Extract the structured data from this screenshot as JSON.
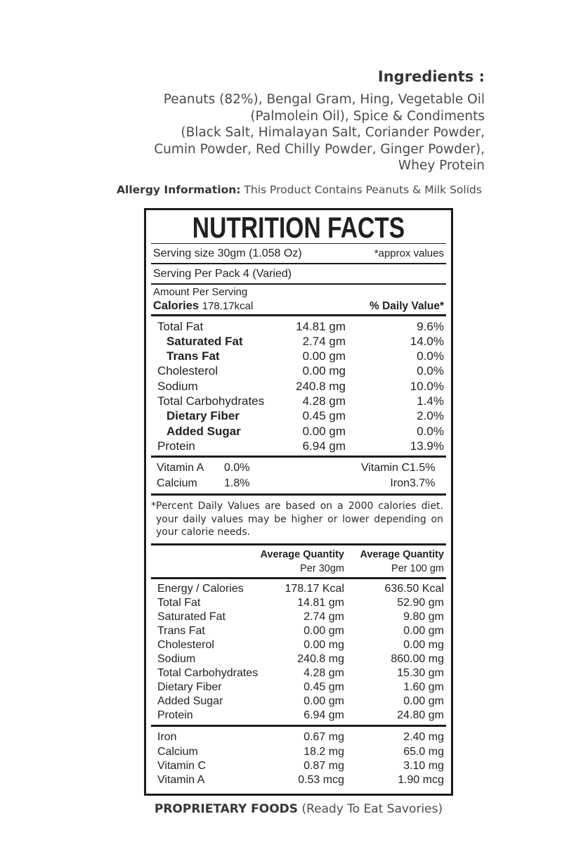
{
  "colors": {
    "ink": "#231f20",
    "muted_text": "#4b4b4d",
    "border": "#1c1c1c"
  },
  "top": {
    "ingredients_heading": "Ingredients :",
    "ingredients_lines": [
      "Peanuts (82%), Bengal Gram, Hing, Vegetable Oil",
      "(Palmolein Oil), Spice & Condiments",
      "(Black Salt, Himalayan Salt, Coriander Powder,",
      "Cumin Powder, Red Chilly Powder, Ginger Powder),",
      "Whey Protein"
    ],
    "allergy_label": "Allergy Information:",
    "allergy_text": " This Product Contains Peanuts & Milk Solids"
  },
  "label": {
    "title": "NUTRITION FACTS",
    "serving_size": "Serving size 30gm (1.058 Oz)",
    "approx_note": "*approx values",
    "serving_per_pack": "Serving Per Pack 4 (Varied)",
    "amount_per_serving": "Amount Per Serving",
    "calories_label": "Calories",
    "calories_value": "178.17kcal",
    "daily_value_header": "% Daily Value*",
    "main_rows": [
      {
        "label": "Total Fat",
        "amount": "14.81 gm",
        "dv": "9.6%",
        "sub": false
      },
      {
        "label": "Saturated Fat",
        "amount": "2.74 gm",
        "dv": "14.0%",
        "sub": true
      },
      {
        "label": "Trans Fat",
        "amount": "0.00 gm",
        "dv": "0.0%",
        "sub": true
      },
      {
        "label": "Cholesterol",
        "amount": "0.00 mg",
        "dv": "0.0%",
        "sub": false
      },
      {
        "label": "Sodium",
        "amount": "240.8 mg",
        "dv": "10.0%",
        "sub": false
      },
      {
        "label": "Total Carbohydrates",
        "amount": "4.28 gm",
        "dv": "1.4%",
        "sub": false
      },
      {
        "label": "Dietary Fiber",
        "amount": "0.45 gm",
        "dv": "2.0%",
        "sub": true
      },
      {
        "label": "Added Sugar",
        "amount": "0.00 gm",
        "dv": "0.0%",
        "sub": true
      },
      {
        "label": "Protein",
        "amount": "6.94 gm",
        "dv": "13.9%",
        "sub": false
      }
    ],
    "micros": [
      {
        "label": "Vitamin A",
        "value": "0.0%"
      },
      {
        "label": "Vitamin C",
        "value": "1.5%"
      },
      {
        "label": "Calcium",
        "value": "1.8%"
      },
      {
        "label": "Iron",
        "value": "3.7%"
      }
    ],
    "footnote": "*Percent Daily Values are based on a 2000 calories diet. your daily values may be higher or lower depending on your calorie needs.",
    "avg_table": {
      "headers": [
        {
          "title": "Average Quantity",
          "sub": "Per 30gm"
        },
        {
          "title": "Average Quantity",
          "sub": "Per 100 gm"
        }
      ],
      "rows": [
        {
          "label": "Energy / Calories",
          "per30": "178.17 Kcal",
          "per100": "636.50 Kcal"
        },
        {
          "label": "Total Fat",
          "per30": "14.81 gm",
          "per100": "52.90 gm"
        },
        {
          "label": "Saturated Fat",
          "per30": "2.74 gm",
          "per100": "9.80 gm"
        },
        {
          "label": "Trans Fat",
          "per30": "0.00 gm",
          "per100": "0.00 gm"
        },
        {
          "label": "Cholesterol",
          "per30": "0.00 mg",
          "per100": "0.00 mg"
        },
        {
          "label": "Sodium",
          "per30": "240.8 mg",
          "per100": "860.00 mg"
        },
        {
          "label": "Total Carbohydrates",
          "per30": "4.28 gm",
          "per100": "15.30 gm"
        },
        {
          "label": "Dietary Fiber",
          "per30": "0.45 gm",
          "per100": "1.60 gm"
        },
        {
          "label": "Added Sugar",
          "per30": "0.00 gm",
          "per100": "0.00 gm"
        },
        {
          "label": "Protein",
          "per30": "6.94 gm",
          "per100": "24.80 gm"
        }
      ],
      "mineral_rows": [
        {
          "label": "Iron",
          "per30": "0.67 mg",
          "per100": "2.40 mg"
        },
        {
          "label": "Calcium",
          "per30": "18.2 mg",
          "per100": "65.0 mg"
        },
        {
          "label": "Vitamin C",
          "per30": "0.87 mg",
          "per100": "3.10 mg"
        },
        {
          "label": "Vitamin A",
          "per30": "0.53 mcg",
          "per100": "1.90 mcg"
        }
      ]
    }
  },
  "footer": {
    "bold": "PROPRIETARY FOODS",
    "text": " (Ready To Eat Savories)"
  }
}
